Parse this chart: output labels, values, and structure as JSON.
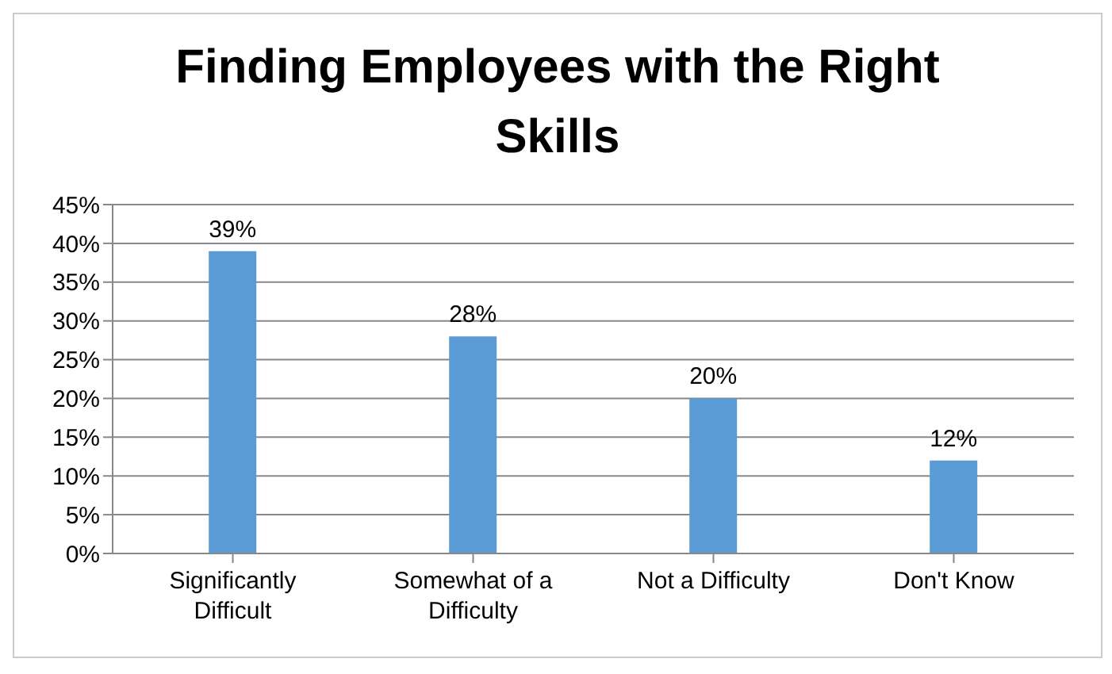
{
  "chart_data": {
    "type": "bar",
    "title": "Finding Employees with the Right Skills",
    "categories": [
      "Significantly Difficult",
      "Somewhat of a Difficulty",
      "Not a Difficulty",
      "Don't Know"
    ],
    "values": [
      39,
      28,
      20,
      12
    ],
    "color": "#5b9bd5",
    "value_labels": [
      "39%",
      "28%",
      "20%",
      "12%"
    ],
    "ylim": [
      0,
      45
    ],
    "yticks": [
      {
        "value": 0,
        "label": "0%"
      },
      {
        "value": 5,
        "label": "5%"
      },
      {
        "value": 10,
        "label": "10%"
      },
      {
        "value": 15,
        "label": "15%"
      },
      {
        "value": 20,
        "label": "20%"
      },
      {
        "value": 25,
        "label": "25%"
      },
      {
        "value": 30,
        "label": "30%"
      },
      {
        "value": 35,
        "label": "35%"
      },
      {
        "value": 40,
        "label": "40%"
      },
      {
        "value": 45,
        "label": "45%"
      }
    ],
    "grid": "y"
  }
}
